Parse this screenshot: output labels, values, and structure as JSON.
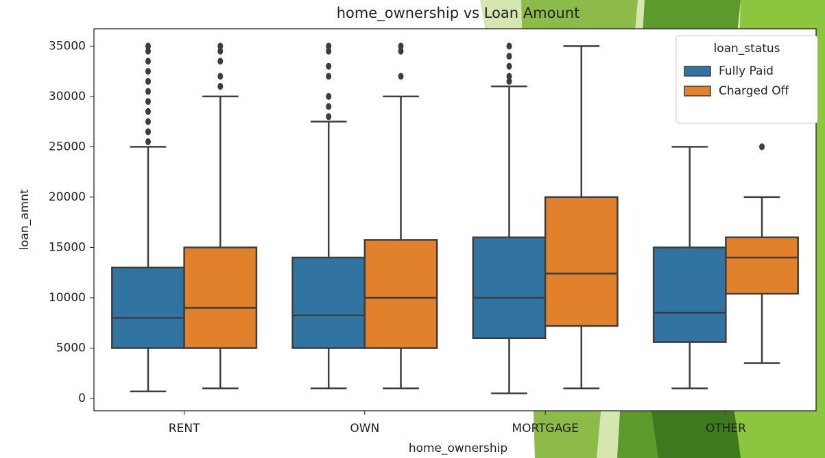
{
  "chart_data": {
    "type": "box",
    "title": "home_ownership vs Loan Amount",
    "x_label": "home_ownership",
    "y_label": "loan_amnt",
    "categories": [
      "RENT",
      "OWN",
      "MORTGAGE",
      "OTHER"
    ],
    "legend_title": "loan_status",
    "legend_position": "upper right",
    "ylim": [
      -1225,
      36725
    ],
    "yticks": [
      0,
      5000,
      10000,
      15000,
      20000,
      25000,
      30000,
      35000
    ],
    "series": [
      {
        "name": "Fully Paid",
        "color": "#3274a1",
        "boxes": [
          {
            "whislo": 700,
            "q1": 5000,
            "med": 8000,
            "q3": 13000,
            "whishi": 25000,
            "fliers": [
              25500,
              26500,
              27500,
              28500,
              29500,
              30500,
              31500,
              32500,
              33500,
              34500,
              35000
            ]
          },
          {
            "whislo": 1000,
            "q1": 5000,
            "med": 8250,
            "q3": 14000,
            "whishi": 27500,
            "fliers": [
              28000,
              29000,
              30000,
              32000,
              33000,
              34500,
              35000
            ]
          },
          {
            "whislo": 500,
            "q1": 6000,
            "med": 10000,
            "q3": 16000,
            "whishi": 31000,
            "fliers": [
              31500,
              32000,
              33000,
              34000,
              35000
            ]
          },
          {
            "whislo": 1000,
            "q1": 5600,
            "med": 8500,
            "q3": 15000,
            "whishi": 25000,
            "fliers": []
          }
        ]
      },
      {
        "name": "Charged Off",
        "color": "#e1812c",
        "boxes": [
          {
            "whislo": 1000,
            "q1": 5000,
            "med": 9000,
            "q3": 15000,
            "whishi": 30000,
            "fliers": [
              31000,
              32000,
              33500,
              34500,
              35000
            ]
          },
          {
            "whislo": 1000,
            "q1": 5000,
            "med": 10000,
            "q3": 15750,
            "whishi": 30000,
            "fliers": [
              32000,
              34500,
              35000
            ]
          },
          {
            "whislo": 1000,
            "q1": 7200,
            "med": 12400,
            "q3": 20000,
            "whishi": 35000,
            "fliers": []
          },
          {
            "whislo": 3500,
            "q1": 10400,
            "med": 14000,
            "q3": 16000,
            "whishi": 20000,
            "fliers": [
              25000
            ]
          }
        ]
      }
    ]
  }
}
